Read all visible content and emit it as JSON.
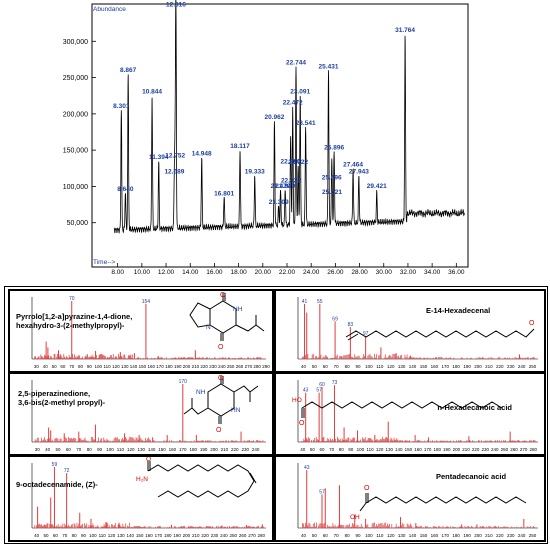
{
  "chromatogram": {
    "ylabel": "Abundance",
    "xlabel": "Time-->",
    "yticks": [
      "50,000",
      "100,000",
      "150,000",
      "200,000",
      "250,000",
      "300,000"
    ],
    "xticks": [
      "8.00",
      "10.00",
      "12.00",
      "14.00",
      "16.00",
      "18.00",
      "20.00",
      "22.00",
      "24.00",
      "26.00",
      "28.00",
      "30.00",
      "32.00",
      "34.00",
      "36.00"
    ],
    "peaks": [
      {
        "t": 8.301,
        "a": 205000,
        "label": "8.301"
      },
      {
        "t": 8.64,
        "a": 91000,
        "label": "8.640"
      },
      {
        "t": 8.867,
        "a": 255000,
        "label": "8.867"
      },
      {
        "t": 10.844,
        "a": 225000,
        "label": "10.844"
      },
      {
        "t": 11.394,
        "a": 135000,
        "label": "11.394"
      },
      {
        "t": 12.689,
        "a": 115000,
        "label": "12.689"
      },
      {
        "t": 12.752,
        "a": 137000,
        "label": "12.752"
      },
      {
        "t": 12.816,
        "a": 345000,
        "label": "12.816"
      },
      {
        "t": 14.948,
        "a": 140000,
        "label": "14.948"
      },
      {
        "t": 16.801,
        "a": 85000,
        "label": "16.801"
      },
      {
        "t": 18.117,
        "a": 150000,
        "label": "18.117"
      },
      {
        "t": 19.333,
        "a": 115000,
        "label": "19.333"
      },
      {
        "t": 20.962,
        "a": 190000,
        "label": "20.962"
      },
      {
        "t": 21.309,
        "a": 73000,
        "label": "21.309"
      },
      {
        "t": 21.47,
        "a": 95000,
        "label": "21.470"
      },
      {
        "t": 21.849,
        "a": 95000,
        "label": "21.849"
      },
      {
        "t": 22.29,
        "a": 129000,
        "label": "22.290"
      },
      {
        "t": 22.322,
        "a": 103000,
        "label": "22.322"
      },
      {
        "t": 22.472,
        "a": 210000,
        "label": "22.472"
      },
      {
        "t": 22.744,
        "a": 265000,
        "label": "22.744"
      },
      {
        "t": 22.922,
        "a": 128000,
        "label": "22.922"
      },
      {
        "t": 23.091,
        "a": 225000,
        "label": "23.091"
      },
      {
        "t": 23.541,
        "a": 182000,
        "label": "23.541"
      },
      {
        "t": 25.431,
        "a": 260000,
        "label": "25.431"
      },
      {
        "t": 25.696,
        "a": 107000,
        "label": "25.696"
      },
      {
        "t": 25.721,
        "a": 87000,
        "label": "25.721"
      },
      {
        "t": 25.896,
        "a": 148000,
        "label": "25.896"
      },
      {
        "t": 27.464,
        "a": 125000,
        "label": "27.464"
      },
      {
        "t": 27.943,
        "a": 115000,
        "label": "27.943"
      },
      {
        "t": 29.421,
        "a": 95000,
        "label": "29.421"
      },
      {
        "t": 31.764,
        "a": 310000,
        "label": "31.764"
      }
    ]
  },
  "spectra": [
    {
      "name": "Pyrrolo[1,2-a]pyrazine-1,4-dione,\nhexahydro-3-(2-methylpropyl)-",
      "xticks": [
        "30",
        "40",
        "50",
        "60",
        "70",
        "80",
        "90",
        "100",
        "110",
        "120",
        "130",
        "140",
        "150",
        "160",
        "170",
        "180",
        "190",
        "200",
        "210",
        "220",
        "230",
        "240",
        "250",
        "260",
        "270",
        "280",
        "290"
      ],
      "peaks": [
        [
          41,
          0.3
        ],
        [
          43,
          0.2
        ],
        [
          55,
          0.15
        ],
        [
          57,
          0.08
        ],
        [
          70,
          1.0
        ],
        [
          97,
          0.14
        ],
        [
          125,
          0.12
        ],
        [
          141,
          0.1
        ],
        [
          154,
          0.95
        ],
        [
          168,
          0.05
        ],
        [
          210,
          0.15
        ]
      ],
      "labels": [
        [
          70,
          "70"
        ],
        [
          154,
          "154"
        ]
      ],
      "xrange": [
        25,
        290
      ]
    },
    {
      "name": "E-14-Hexadecenal",
      "xticks": [
        "40",
        "50",
        "60",
        "70",
        "80",
        "90",
        "100",
        "110",
        "120",
        "130",
        "140",
        "150",
        "160",
        "170",
        "180",
        "190",
        "200",
        "210",
        "220",
        "230",
        "240",
        "250"
      ],
      "peaks": [
        [
          41,
          0.95
        ],
        [
          43,
          0.8
        ],
        [
          55,
          0.95
        ],
        [
          69,
          0.65
        ],
        [
          83,
          0.55
        ],
        [
          97,
          0.4
        ],
        [
          111,
          0.2
        ],
        [
          125,
          0.1
        ],
        [
          138,
          0.05
        ],
        [
          238,
          0.08
        ]
      ],
      "labels": [
        [
          41,
          "41"
        ],
        [
          55,
          "55"
        ],
        [
          69,
          "69"
        ],
        [
          83,
          "83"
        ],
        [
          97,
          "97"
        ]
      ],
      "xrange": [
        35,
        255
      ]
    },
    {
      "name": "2,5-piperazinedione,\n3,6-bis(2-methyl propyl)-",
      "xticks": [
        "30",
        "40",
        "50",
        "60",
        "70",
        "80",
        "90",
        "100",
        "110",
        "120",
        "130",
        "140",
        "150",
        "160",
        "170",
        "180",
        "190",
        "200",
        "210",
        "220",
        "230",
        "240"
      ],
      "peaks": [
        [
          41,
          0.25
        ],
        [
          43,
          0.2
        ],
        [
          56,
          0.15
        ],
        [
          70,
          0.18
        ],
        [
          86,
          0.3
        ],
        [
          114,
          0.15
        ],
        [
          128,
          0.12
        ],
        [
          141,
          0.08
        ],
        [
          155,
          0.12
        ],
        [
          170,
          1.0
        ],
        [
          183,
          0.12
        ],
        [
          226,
          0.18
        ]
      ],
      "labels": [
        [
          170,
          "170"
        ]
      ],
      "xrange": [
        25,
        250
      ]
    },
    {
      "name": "n-Hexadecanoic acid",
      "xticks": [
        "40",
        "50",
        "60",
        "70",
        "80",
        "90",
        "100",
        "110",
        "120",
        "130",
        "140",
        "150",
        "160",
        "170",
        "180",
        "190",
        "200",
        "210",
        "220",
        "230",
        "240",
        "250",
        "260",
        "270",
        "280"
      ],
      "peaks": [
        [
          43,
          0.85
        ],
        [
          57,
          0.85
        ],
        [
          60,
          0.95
        ],
        [
          73,
          0.98
        ],
        [
          83,
          0.25
        ],
        [
          97,
          0.2
        ],
        [
          115,
          0.12
        ],
        [
          129,
          0.35
        ],
        [
          157,
          0.12
        ],
        [
          171,
          0.08
        ],
        [
          213,
          0.1
        ],
        [
          256,
          0.18
        ]
      ],
      "labels": [
        [
          43,
          "43"
        ],
        [
          57,
          "57"
        ],
        [
          60,
          "60"
        ],
        [
          73,
          "73"
        ]
      ],
      "xrange": [
        35,
        285
      ]
    },
    {
      "name": "9-octadecenamide, (Z)-",
      "xticks": [
        "40",
        "50",
        "60",
        "70",
        "80",
        "90",
        "100",
        "110",
        "120",
        "130",
        "140",
        "150",
        "160",
        "170",
        "180",
        "190",
        "200",
        "210",
        "220",
        "230",
        "240",
        "250",
        "260",
        "270",
        "280"
      ],
      "peaks": [
        [
          41,
          0.35
        ],
        [
          55,
          0.5
        ],
        [
          59,
          1.0
        ],
        [
          72,
          0.9
        ],
        [
          86,
          0.25
        ],
        [
          98,
          0.15
        ],
        [
          114,
          0.1
        ],
        [
          128,
          0.08
        ],
        [
          184,
          0.05
        ],
        [
          238,
          0.04
        ],
        [
          264,
          0.05
        ],
        [
          281,
          0.06
        ]
      ],
      "labels": [
        [
          59,
          "59"
        ],
        [
          72,
          "72"
        ]
      ],
      "xrange": [
        35,
        285
      ]
    },
    {
      "name": "Pentadecanoic acid",
      "xticks": [
        "40",
        "50",
        "60",
        "70",
        "80",
        "90",
        "100",
        "110",
        "120",
        "130",
        "140",
        "150",
        "160",
        "170",
        "180",
        "190",
        "200",
        "210",
        "220",
        "230",
        "240",
        "250"
      ],
      "peaks": [
        [
          43,
          0.95
        ],
        [
          57,
          0.55
        ],
        [
          60,
          0.65
        ],
        [
          73,
          0.7
        ],
        [
          87,
          0.22
        ],
        [
          97,
          0.15
        ],
        [
          129,
          0.18
        ],
        [
          143,
          0.08
        ],
        [
          185,
          0.06
        ],
        [
          199,
          0.06
        ],
        [
          242,
          0.15
        ]
      ],
      "labels": [
        [
          43,
          "43"
        ],
        [
          57,
          "57"
        ]
      ],
      "xrange": [
        35,
        255
      ]
    }
  ],
  "chart_data": [
    {
      "type": "line",
      "title": "",
      "xlabel": "Time-->",
      "ylabel": "Abundance",
      "xlim": [
        7,
        37
      ],
      "ylim": [
        0,
        350000
      ],
      "x": [
        8.301,
        8.64,
        8.867,
        10.844,
        11.394,
        12.689,
        12.752,
        12.816,
        14.948,
        16.801,
        18.117,
        19.333,
        20.962,
        21.309,
        21.47,
        21.849,
        22.29,
        22.322,
        22.472,
        22.744,
        22.922,
        23.091,
        23.541,
        25.431,
        25.696,
        25.721,
        25.896,
        27.464,
        27.943,
        29.421,
        31.764
      ],
      "y": [
        205000,
        91000,
        255000,
        225000,
        135000,
        115000,
        137000,
        345000,
        140000,
        85000,
        150000,
        115000,
        190000,
        73000,
        95000,
        95000,
        129000,
        103000,
        210000,
        265000,
        128000,
        225000,
        182000,
        260000,
        107000,
        87000,
        148000,
        125000,
        115000,
        95000,
        310000
      ],
      "grid": false
    }
  ]
}
